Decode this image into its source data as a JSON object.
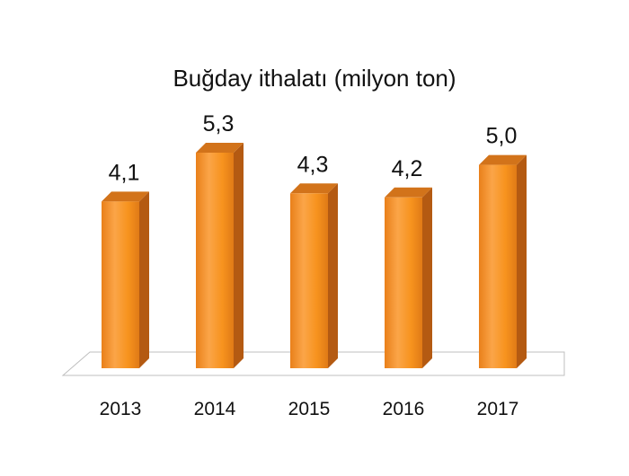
{
  "chart_data": {
    "type": "bar",
    "title": "Buğday ithalatı (milyon ton)",
    "categories": [
      "2013",
      "2014",
      "2015",
      "2016",
      "2017"
    ],
    "values": [
      4.1,
      5.3,
      4.3,
      4.2,
      5.0
    ],
    "data_labels": [
      "4,1",
      "5,3",
      "4,3",
      "4,2",
      "5,0"
    ],
    "xlabel": "",
    "ylabel": "",
    "ylim": [
      0,
      5.3
    ],
    "grid": false,
    "legend": "none",
    "style": "3d-column",
    "colors": {
      "bar_front": "#f7931e",
      "bar_side": "#b45a12",
      "bar_top": "#d2731a",
      "floor_stroke": "#bfbfbf"
    }
  }
}
